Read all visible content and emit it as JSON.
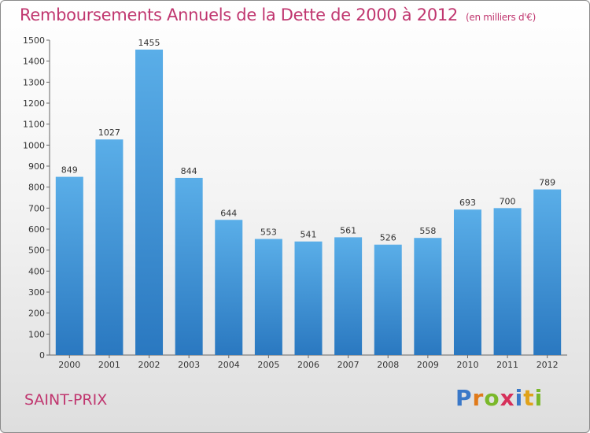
{
  "title": "Remboursements Annuels de la Dette de 2000 à 2012",
  "unit_note": "(en milliers d'€)",
  "place": "SAINT-PRIX",
  "brand": "Proxiti",
  "colors": {
    "title": "#c0366f",
    "bar_top": "#5aaee8",
    "bar_bottom": "#2a78c0"
  },
  "chart_data": {
    "type": "bar",
    "title": "Remboursements Annuels de la Dette de 2000 à 2012",
    "xlabel": "",
    "ylabel": "",
    "categories": [
      "2000",
      "2001",
      "2002",
      "2003",
      "2004",
      "2005",
      "2006",
      "2007",
      "2008",
      "2009",
      "2010",
      "2011",
      "2012"
    ],
    "values": [
      849,
      1027,
      1455,
      844,
      644,
      553,
      541,
      561,
      526,
      558,
      693,
      700,
      789
    ],
    "ylim": [
      0,
      1500
    ],
    "yticks": [
      0,
      100,
      200,
      300,
      400,
      500,
      600,
      700,
      800,
      900,
      1000,
      1100,
      1200,
      1300,
      1400,
      1500
    ],
    "grid": false,
    "legend": "none"
  }
}
